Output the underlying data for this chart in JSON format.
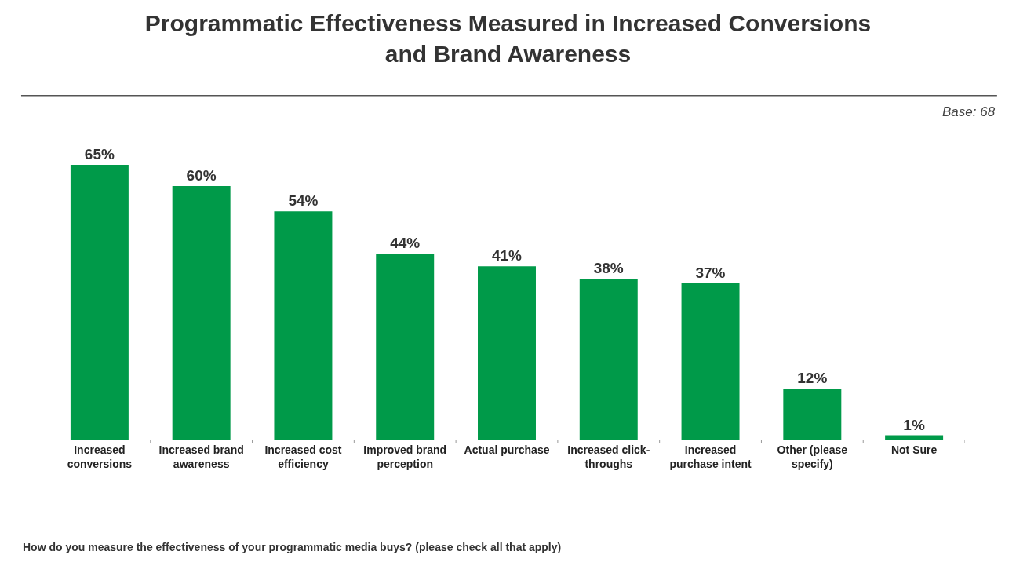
{
  "chart_data": {
    "type": "bar",
    "title": "Programmatic Effectiveness Measured in Increased Conversions and Brand Awareness",
    "categories": [
      "Increased conversions",
      "Increased brand awareness",
      "Increased cost efficiency",
      "Improved brand perception",
      "Actual purchase",
      "Increased click-throughs",
      "Increased purchase intent",
      "Other (please specify)",
      "Not Sure"
    ],
    "values": [
      65,
      60,
      54,
      44,
      41,
      38,
      37,
      12,
      1
    ],
    "value_labels": [
      "65%",
      "60%",
      "54%",
      "44%",
      "41%",
      "38%",
      "37%",
      "12%",
      "1%"
    ],
    "color": "#009a49",
    "annotations": [
      "Base: 68",
      "How do you measure the effectiveness of your programmatic media buys? (please check all that apply)"
    ],
    "legend": false
  }
}
